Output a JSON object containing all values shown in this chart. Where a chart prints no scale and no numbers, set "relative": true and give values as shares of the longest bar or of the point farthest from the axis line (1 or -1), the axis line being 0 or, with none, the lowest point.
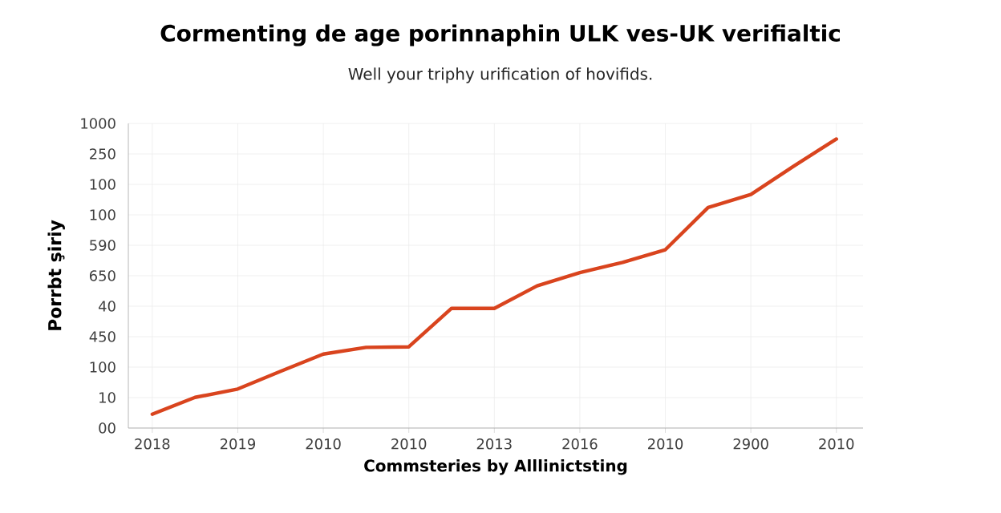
{
  "chart_data": {
    "type": "line",
    "title": "Cormenting de age porinnaphin ULK ves-UK verifialtic",
    "subtitle": "Well your triphy urification of hovifids.",
    "xlabel": "Commsteries by Alllinictsting",
    "ylabel": "Porrbt şiriy",
    "categories": [
      "2018",
      null,
      "2019",
      null,
      "2010",
      null,
      "2010",
      null,
      "2013",
      null,
      "2016",
      null,
      "2010",
      null,
      "2900",
      null,
      "2010"
    ],
    "series": [
      {
        "color": "#d9441e",
        "values": [
          0.048,
          0.106,
          0.135,
          0.196,
          0.256,
          0.279,
          0.281,
          0.414,
          0.414,
          0.492,
          0.538,
          0.573,
          0.617,
          0.763,
          0.808,
          0.906,
          1
        ]
      }
    ],
    "relative": true,
    "annotations": [
      "1000",
      "250",
      "100",
      "100",
      "590",
      "650",
      "40",
      "450",
      "100",
      "10",
      "00"
    ],
    "grid": true,
    "marker": "none",
    "line_style": "solid"
  }
}
